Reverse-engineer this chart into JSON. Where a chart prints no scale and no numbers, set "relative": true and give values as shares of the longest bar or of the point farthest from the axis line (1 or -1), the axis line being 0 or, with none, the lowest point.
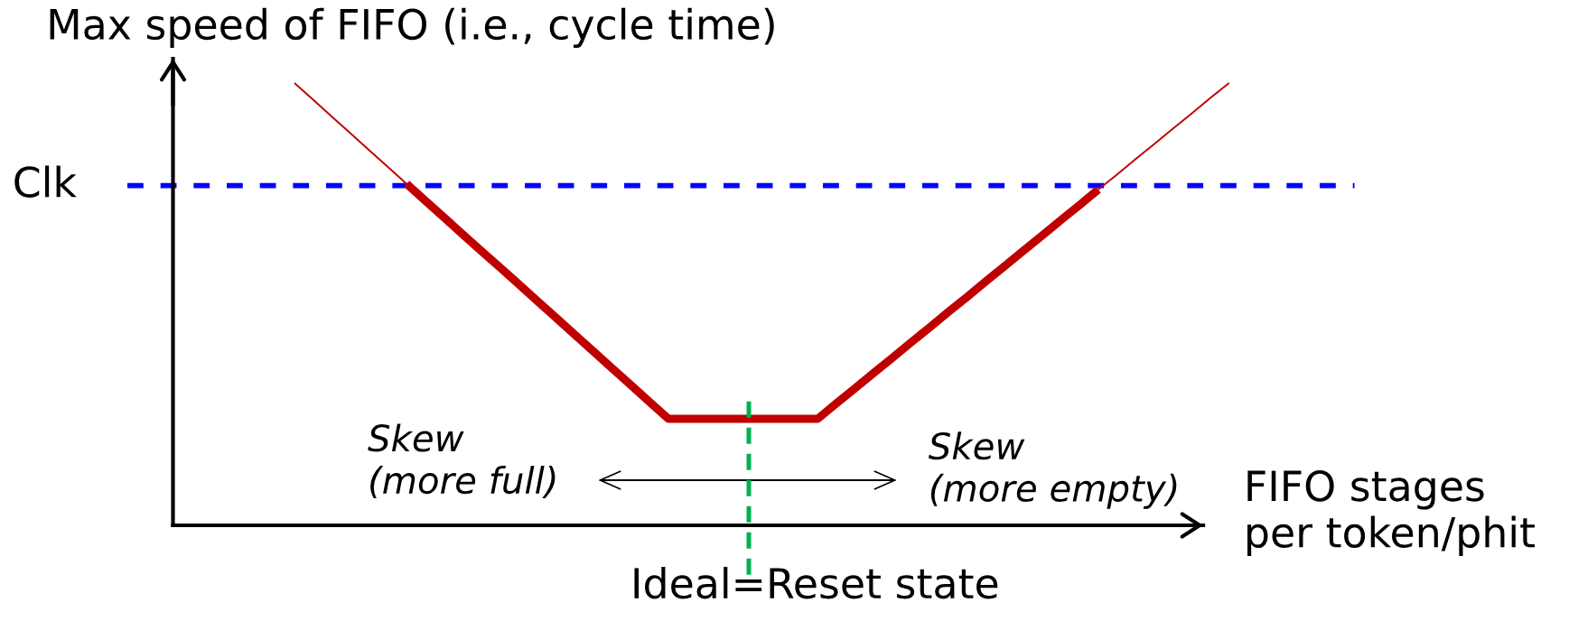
{
  "chart_data": {
    "type": "line",
    "relative": true,
    "ylabel": "Max speed of FIFO (i.e., cycle time)",
    "xlabel": "FIFO stages\nper token/phit",
    "categories": [
      null,
      null,
      null,
      null,
      null,
      null,
      null,
      null,
      null,
      null,
      null,
      null,
      null,
      null,
      null,
      null,
      null,
      null,
      null,
      null,
      null,
      null,
      null,
      null,
      null,
      null,
      null,
      null,
      null,
      null,
      null,
      null,
      null,
      null,
      null,
      null,
      null,
      null,
      null,
      null,
      null,
      null,
      null,
      null,
      null,
      null,
      null,
      null,
      null,
      null,
      null,
      null,
      null,
      null,
      null,
      null,
      null
    ],
    "series": [
      {
        "color": "#c00000",
        "values": [
          null,
          null,
          null,
          null,
          null,
          null,
          1.0,
          0.962,
          0.924,
          0.886,
          0.848,
          0.81,
          0.772,
          null,
          null,
          null,
          null,
          null,
          null,
          null,
          null,
          null,
          null,
          null,
          null,
          null,
          null,
          null,
          null,
          null,
          null,
          null,
          null,
          null,
          null,
          null,
          null,
          null,
          null,
          null,
          null,
          null,
          null,
          null,
          null,
          null,
          null,
          null,
          null,
          0.759,
          0.793,
          0.828,
          0.862,
          0.897,
          0.931,
          0.966,
          1.0
        ]
      },
      {
        "color": "#c00000",
        "values": [
          null,
          null,
          null,
          null,
          null,
          null,
          null,
          null,
          null,
          null,
          null,
          null,
          0.772,
          0.734,
          0.696,
          0.658,
          0.62,
          0.583,
          0.545,
          0.507,
          0.469,
          0.431,
          0.393,
          0.355,
          0.317,
          0.279,
          0.241,
          0.241,
          0.241,
          0.241,
          0.241,
          0.241,
          0.241,
          0.241,
          0.241,
          0.276,
          0.31,
          0.345,
          0.379,
          0.414,
          0.448,
          0.483,
          0.517,
          0.552,
          0.586,
          0.621,
          0.655,
          0.69,
          0.724,
          0.759,
          null,
          null,
          null,
          null,
          null,
          null,
          null
        ]
      }
    ],
    "ref_lines": [
      {
        "axis": "y",
        "value": 0.768,
        "label": "Clk",
        "color": "#0000ff",
        "line_style": "dashed"
      }
    ],
    "annotations": [
      "Skew\n(more full)",
      "Skew\n(more empty)",
      "Ideal=Reset state"
    ]
  }
}
